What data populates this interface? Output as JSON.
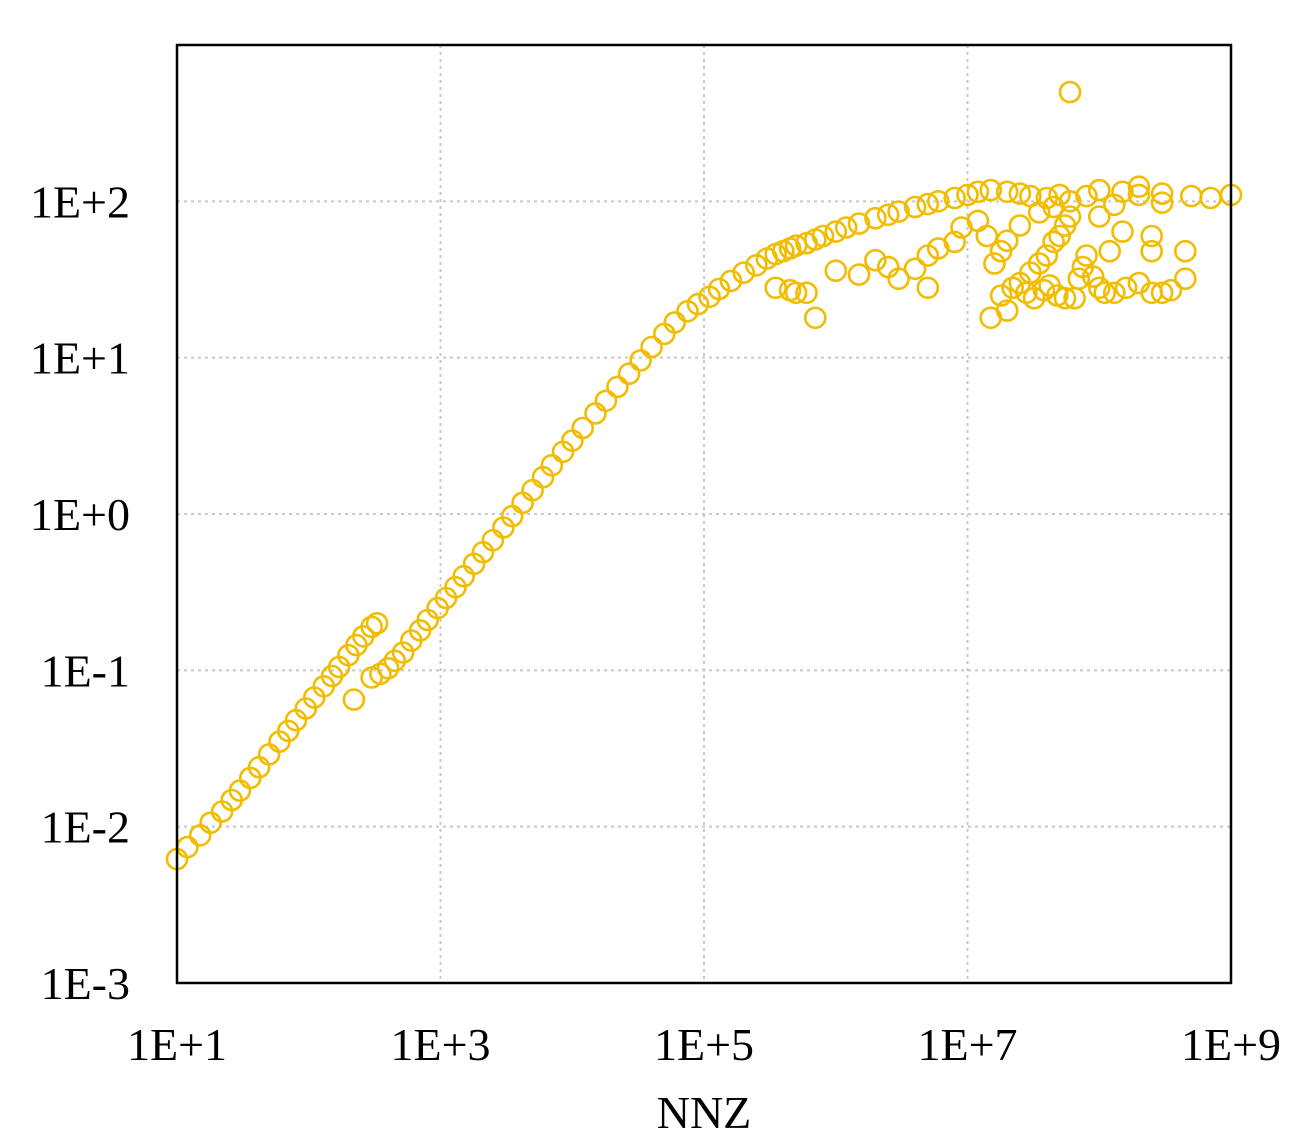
{
  "chart_data": {
    "type": "scatter",
    "xlabel": "NNZ",
    "ylabel": "",
    "x_scale": "log",
    "y_scale": "log",
    "xlim": [
      10,
      1000000000
    ],
    "ylim": [
      0.001,
      1000
    ],
    "x_ticks": [
      "1E+1",
      "1E+3",
      "1E+5",
      "1E+7",
      "1E+9"
    ],
    "x_tick_values": [
      10,
      1000,
      100000,
      10000000,
      1000000000
    ],
    "y_ticks": [
      "1E-3",
      "1E-2",
      "1E-1",
      "1E+0",
      "1E+1",
      "1E+2"
    ],
    "y_tick_values": [
      0.001,
      0.01,
      0.1,
      1,
      10,
      100
    ],
    "grid": true,
    "marker": "hollow-circle",
    "point_color": "#F2BC00",
    "series": [
      {
        "values": [
          [
            10,
            0.0062
          ],
          [
            12,
            0.0074
          ],
          [
            15,
            0.0088
          ],
          [
            18,
            0.0106
          ],
          [
            22,
            0.0125
          ],
          [
            26,
            0.0148
          ],
          [
            30,
            0.017
          ],
          [
            36,
            0.0205
          ],
          [
            42,
            0.024
          ],
          [
            50,
            0.029
          ],
          [
            60,
            0.035
          ],
          [
            70,
            0.041
          ],
          [
            80,
            0.048
          ],
          [
            95,
            0.057
          ],
          [
            110,
            0.067
          ],
          [
            130,
            0.079
          ],
          [
            150,
            0.092
          ],
          [
            170,
            0.105
          ],
          [
            200,
            0.125
          ],
          [
            230,
            0.145
          ],
          [
            260,
            0.165
          ],
          [
            300,
            0.19
          ],
          [
            330,
            0.2
          ],
          [
            220,
            0.065
          ],
          [
            300,
            0.09
          ],
          [
            350,
            0.095
          ],
          [
            400,
            0.103
          ],
          [
            450,
            0.115
          ],
          [
            520,
            0.13
          ],
          [
            600,
            0.155
          ],
          [
            700,
            0.18
          ],
          [
            800,
            0.21
          ],
          [
            950,
            0.25
          ],
          [
            1100,
            0.29
          ],
          [
            1300,
            0.34
          ],
          [
            1500,
            0.4
          ],
          [
            1800,
            0.48
          ],
          [
            2100,
            0.57
          ],
          [
            2500,
            0.68
          ],
          [
            3000,
            0.82
          ],
          [
            3500,
            0.97
          ],
          [
            4200,
            1.18
          ],
          [
            5000,
            1.42
          ],
          [
            6000,
            1.72
          ],
          [
            7000,
            2.05
          ],
          [
            8500,
            2.5
          ],
          [
            10000,
            2.95
          ],
          [
            12000,
            3.55
          ],
          [
            15000,
            4.4
          ],
          [
            18000,
            5.3
          ],
          [
            22000,
            6.5
          ],
          [
            27000,
            7.9
          ],
          [
            33000,
            9.6
          ],
          [
            40000,
            11.7
          ],
          [
            50000,
            14.2
          ],
          [
            60000,
            16.8
          ],
          [
            75000,
            19.8
          ],
          [
            90000,
            22
          ],
          [
            110000,
            24.5
          ],
          [
            130000,
            27.5
          ],
          [
            160000,
            31
          ],
          [
            200000,
            35
          ],
          [
            250000,
            39
          ],
          [
            300000,
            43
          ],
          [
            350000,
            46
          ],
          [
            400000,
            48
          ],
          [
            450000,
            50
          ],
          [
            500000,
            52
          ],
          [
            600000,
            54
          ],
          [
            700000,
            57
          ],
          [
            800000,
            60
          ],
          [
            1000000,
            64
          ],
          [
            1200000,
            68
          ],
          [
            1500000,
            72
          ],
          [
            2000000,
            78
          ],
          [
            2500000,
            82
          ],
          [
            3000000,
            86
          ],
          [
            4000000,
            92
          ],
          [
            5000000,
            96
          ],
          [
            6000000,
            100
          ],
          [
            8000000,
            105
          ],
          [
            10000000,
            110
          ],
          [
            12000000,
            115
          ],
          [
            15000000,
            118
          ],
          [
            20000000,
            115
          ],
          [
            25000000,
            112
          ],
          [
            30000000,
            108
          ],
          [
            40000000,
            105
          ],
          [
            50000000,
            110
          ],
          [
            60000000,
            100
          ],
          [
            80000000,
            108
          ],
          [
            100000000,
            118
          ],
          [
            150000000,
            115
          ],
          [
            200000000,
            110
          ],
          [
            300000000,
            112
          ],
          [
            500000000,
            108
          ],
          [
            700000000,
            105
          ],
          [
            1000000000,
            110
          ],
          [
            60000000,
            500
          ],
          [
            2500000,
            38
          ],
          [
            4000000,
            37
          ],
          [
            5000000,
            28
          ],
          [
            3000000,
            32
          ],
          [
            700000,
            18
          ],
          [
            600000,
            26
          ],
          [
            450000,
            27
          ],
          [
            350000,
            28
          ],
          [
            500000,
            26
          ],
          [
            1000000,
            36
          ],
          [
            1500000,
            34
          ],
          [
            2000000,
            42
          ],
          [
            20000000,
            20
          ],
          [
            15000000,
            18
          ],
          [
            18000000,
            25
          ],
          [
            25000000,
            30
          ],
          [
            30000000,
            35
          ],
          [
            35000000,
            40
          ],
          [
            40000000,
            45
          ],
          [
            45000000,
            55
          ],
          [
            50000000,
            60
          ],
          [
            55000000,
            70
          ],
          [
            60000000,
            80
          ],
          [
            22000000,
            28
          ],
          [
            28000000,
            26
          ],
          [
            32000000,
            24
          ],
          [
            38000000,
            27
          ],
          [
            42000000,
            29
          ],
          [
            48000000,
            25
          ],
          [
            55000000,
            24
          ],
          [
            65000000,
            24
          ],
          [
            70000000,
            32
          ],
          [
            75000000,
            38
          ],
          [
            80000000,
            45
          ],
          [
            90000000,
            33
          ],
          [
            100000000,
            28
          ],
          [
            110000000,
            26
          ],
          [
            130000000,
            26
          ],
          [
            160000000,
            28
          ],
          [
            200000000,
            30
          ],
          [
            250000000,
            26
          ],
          [
            300000000,
            26
          ],
          [
            350000000,
            27
          ],
          [
            450000000,
            32
          ],
          [
            450000000,
            48
          ],
          [
            250000000,
            48
          ],
          [
            250000000,
            60
          ],
          [
            120000000,
            48
          ],
          [
            150000000,
            64
          ],
          [
            100000000,
            80
          ],
          [
            130000000,
            95
          ],
          [
            200000000,
            124
          ],
          [
            300000000,
            98
          ],
          [
            16000000,
            40
          ],
          [
            18000000,
            48
          ],
          [
            20000000,
            56
          ],
          [
            14000000,
            60
          ],
          [
            12000000,
            75
          ],
          [
            25000000,
            70
          ],
          [
            35000000,
            85
          ],
          [
            45000000,
            92
          ],
          [
            8000000,
            55
          ],
          [
            6000000,
            50
          ],
          [
            5000000,
            45
          ],
          [
            9000000,
            68
          ]
        ]
      }
    ]
  }
}
